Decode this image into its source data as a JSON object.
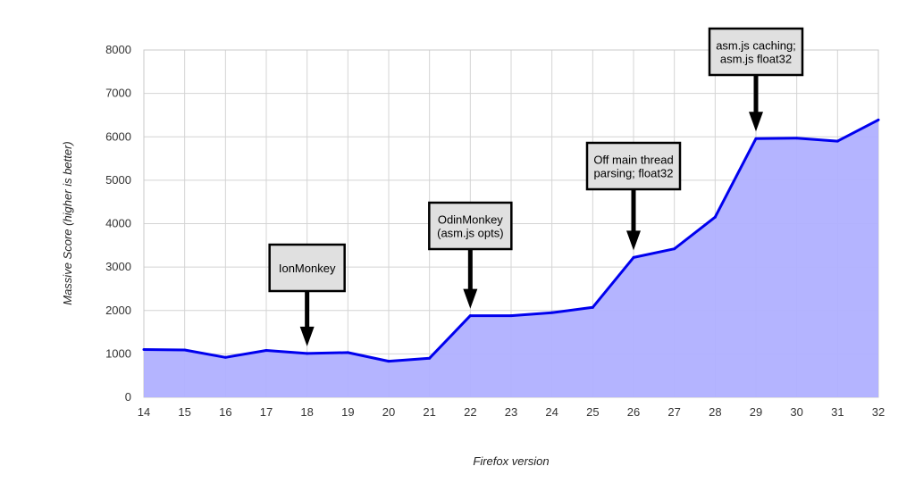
{
  "chart_data": {
    "type": "area",
    "xlabel": "Firefox version",
    "ylabel": "Massive Score (higher is better)",
    "x": [
      14,
      15,
      16,
      17,
      18,
      19,
      20,
      21,
      22,
      23,
      24,
      25,
      26,
      27,
      28,
      29,
      30,
      31,
      32
    ],
    "values": [
      1100,
      1090,
      920,
      1080,
      1010,
      1030,
      830,
      900,
      1880,
      1880,
      1950,
      2070,
      3220,
      3420,
      4150,
      5960,
      5970,
      5900,
      6390
    ],
    "ylim": [
      0,
      8000
    ],
    "yticks": [
      0,
      1000,
      2000,
      3000,
      4000,
      5000,
      6000,
      7000,
      8000
    ],
    "grid": true,
    "colors": {
      "line": "#0000ee",
      "fill": "#b0b0ff",
      "grid": "#d4d4d4"
    },
    "annotations": [
      {
        "x": 18,
        "lines": [
          "IonMonkey"
        ]
      },
      {
        "x": 22,
        "lines": [
          "OdinMonkey",
          "(asm.js opts)"
        ]
      },
      {
        "x": 26,
        "lines": [
          "Off main thread",
          "parsing; float32"
        ]
      },
      {
        "x": 29,
        "lines": [
          "asm.js caching;",
          "asm.js float32"
        ]
      }
    ]
  }
}
